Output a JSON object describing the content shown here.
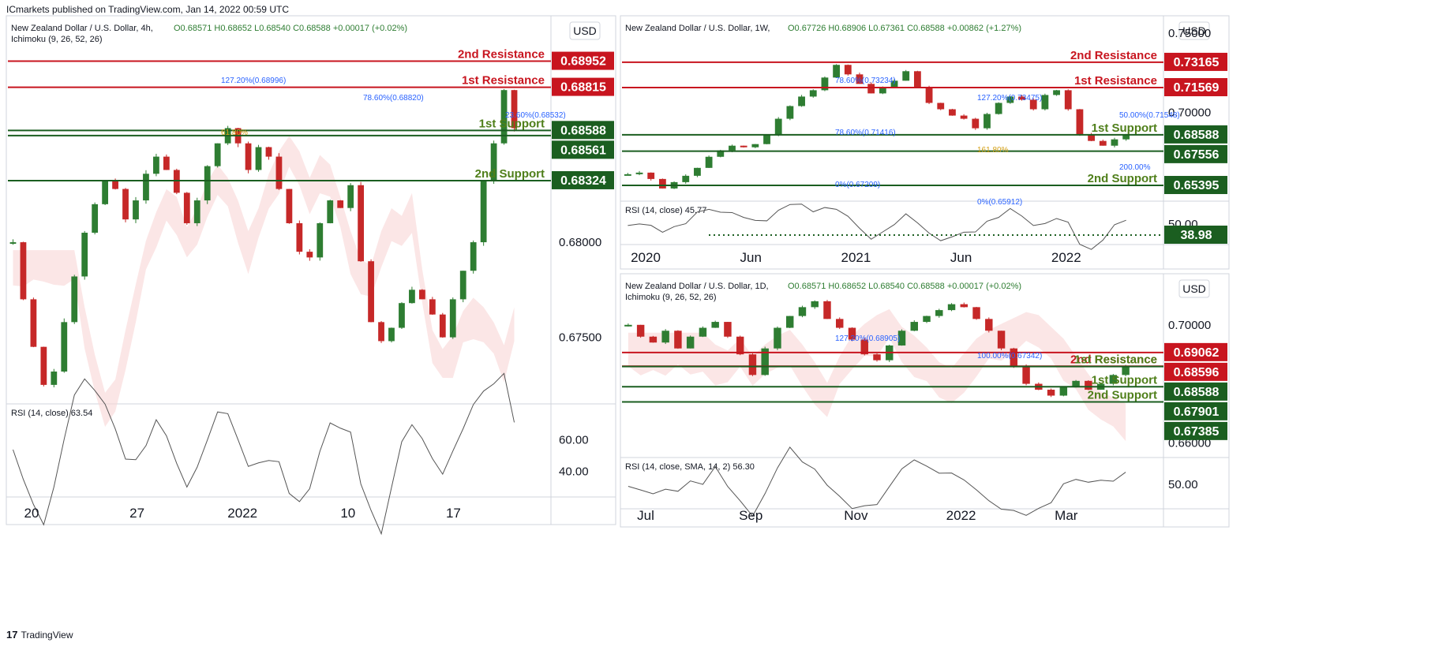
{
  "header": "ICmarkets published on TradingView.com, Jan 14, 2022 00:59 UTC",
  "footer": {
    "logo": "17",
    "brand": "TradingView"
  },
  "colors": {
    "resistance": "#c8151f",
    "support": "#1b5e20",
    "support_text": "#4f7f1a",
    "bull": "#2e7d32",
    "bear": "#c62828",
    "fib": "#2962ff",
    "fib_gold": "#d4a017",
    "price_line": "#9aa0a6",
    "cloud_red": "#f8d6d6",
    "cloud_green": "#dcefdc"
  },
  "chart_data": [
    {
      "id": "h4",
      "type": "candlestick",
      "title": "New Zealand Dollar / U.S. Dollar, 4h,",
      "indicator": "Ichimoku (9, 26, 52, 26)",
      "ohlc": "O0.68571  H0.68652  L0.68540  C0.68588  +0.00017 (+0.02%)",
      "currency": "USD",
      "ylim": [
        0.6715,
        0.6917
      ],
      "price_ticks": [
        "0.68000",
        "0.67500"
      ],
      "x_ticks": [
        "20",
        "27",
        "2022",
        "10",
        "17"
      ],
      "levels": [
        {
          "label": "2nd Resistance",
          "value": 0.68952,
          "value_text": "0.68952",
          "kind": "resistance"
        },
        {
          "label": "1st Resistance",
          "value": 0.68815,
          "value_text": "0.68815",
          "kind": "resistance"
        },
        {
          "label": "1st Support",
          "value": 0.68588,
          "value_text": "0.68588",
          "kind": "support"
        },
        {
          "label": "",
          "value": 0.68561,
          "value_text": "0.68561",
          "kind": "support"
        },
        {
          "label": "2nd Support",
          "value": 0.68324,
          "value_text": "0.68324",
          "kind": "support"
        }
      ],
      "fib_labels": [
        "127.20%(0.68996)",
        "78.60%(0.68820)",
        "23.60%(0.68532)",
        "61.80%"
      ],
      "rsi": {
        "label": "RSI (14, close)",
        "value": "63.54",
        "ticks": [
          "60.00",
          "40.00"
        ]
      },
      "close_path": [
        0.68,
        0.677,
        0.6745,
        0.6725,
        0.6732,
        0.6758,
        0.6782,
        0.6805,
        0.682,
        0.6832,
        0.6828,
        0.6812,
        0.6822,
        0.6836,
        0.6845,
        0.6838,
        0.6826,
        0.681,
        0.6822,
        0.684,
        0.6852,
        0.686,
        0.6852,
        0.6838,
        0.685,
        0.6845,
        0.6828,
        0.681,
        0.6795,
        0.6792,
        0.681,
        0.6822,
        0.6818,
        0.683,
        0.679,
        0.6758,
        0.6748,
        0.6755,
        0.6768,
        0.6775,
        0.677,
        0.6762,
        0.675,
        0.677,
        0.6785,
        0.68,
        0.6832,
        0.6852,
        0.688,
        0.686
      ]
    },
    {
      "id": "w1",
      "type": "candlestick",
      "title": "New Zealand Dollar / U.S. Dollar, 1W,",
      "ohlc": "O0.67726  H0.68906  L0.67361  C0.68588  +0.00862 (+1.27%)",
      "currency": "USD",
      "ylim": [
        0.644,
        0.7585
      ],
      "price_ticks": [
        "0.75000",
        "0.70000"
      ],
      "x_ticks": [
        "2020",
        "Jun",
        "2021",
        "Jun",
        "2022"
      ],
      "levels": [
        {
          "label": "2nd Resistance",
          "value": 0.73165,
          "value_text": "0.73165",
          "kind": "resistance"
        },
        {
          "label": "1st Resistance",
          "value": 0.71569,
          "value_text": "0.71569",
          "kind": "resistance"
        },
        {
          "label": "1st Support",
          "value": 0.68588,
          "value_text": "0.68588",
          "kind": "support"
        },
        {
          "label": "",
          "value": 0.67556,
          "value_text": "0.67556",
          "kind": "support"
        },
        {
          "label": "2nd Support",
          "value": 0.65395,
          "value_text": "0.65395",
          "kind": "support"
        }
      ],
      "fib_labels": [
        "78.60%(0.73234)",
        "127.20%(0.73475)",
        "50.00%(0.71548)",
        "78.60%(0.71416)",
        "161.80%",
        "200.00%",
        "0%(0.67209)",
        "0%(0.65912)"
      ],
      "rsi": {
        "label": "RSI (14, close)",
        "value": "45.77",
        "tick": "50.00",
        "level": "38.98"
      },
      "close_path": [
        0.661,
        0.662,
        0.658,
        0.652,
        0.656,
        0.66,
        0.665,
        0.672,
        0.676,
        0.679,
        0.678,
        0.68,
        0.686,
        0.696,
        0.704,
        0.71,
        0.714,
        0.722,
        0.73,
        0.724,
        0.718,
        0.712,
        0.716,
        0.72,
        0.726,
        0.716,
        0.706,
        0.702,
        0.698,
        0.696,
        0.69,
        0.699,
        0.706,
        0.71,
        0.708,
        0.702,
        0.711,
        0.714,
        0.702,
        0.686,
        0.682,
        0.679,
        0.683,
        0.6859
      ]
    },
    {
      "id": "d1",
      "type": "candlestick",
      "title": "New Zealand Dollar / U.S. Dollar, 1D,",
      "indicator": "Ichimoku (9, 26, 52, 26)",
      "ohlc": "O0.68571  H0.68652  L0.68540  C0.68588  +0.00017 (+0.02%)",
      "currency": "USD",
      "ylim": [
        0.655,
        0.716
      ],
      "price_ticks": [
        "0.70000",
        "0.66000"
      ],
      "x_ticks": [
        "Jul",
        "Sep",
        "Nov",
        "2022",
        "Mar"
      ],
      "levels": [
        {
          "label": "",
          "value": 0.69062,
          "value_text": "0.69062",
          "kind": "resistance"
        },
        {
          "label": "2nd Resistance",
          "value": 0.68596,
          "value_text": "0.68596",
          "kind": "resistance"
        },
        {
          "label": "1st Resistance",
          "value": 0.68588,
          "value_text": "0.68588",
          "kind": "support"
        },
        {
          "label": "1st Support",
          "value": 0.67901,
          "value_text": "0.67901",
          "kind": "support"
        },
        {
          "label": "2nd Support",
          "value": 0.67385,
          "value_text": "0.67385",
          "kind": "support"
        }
      ],
      "fib_labels": [
        "127.20%(0.68905)",
        "100.00%(0.67342)"
      ],
      "rsi": {
        "label": "RSI (14, close, SMA, 14, 2)",
        "value": "56.30",
        "tick": "50.00"
      },
      "close_path": [
        0.7,
        0.696,
        0.694,
        0.698,
        0.692,
        0.696,
        0.699,
        0.701,
        0.696,
        0.69,
        0.683,
        0.692,
        0.699,
        0.703,
        0.706,
        0.708,
        0.702,
        0.699,
        0.695,
        0.69,
        0.688,
        0.693,
        0.698,
        0.701,
        0.703,
        0.705,
        0.707,
        0.706,
        0.702,
        0.698,
        0.692,
        0.686,
        0.68,
        0.678,
        0.676,
        0.679,
        0.681,
        0.678,
        0.68,
        0.683,
        0.6859
      ]
    }
  ]
}
